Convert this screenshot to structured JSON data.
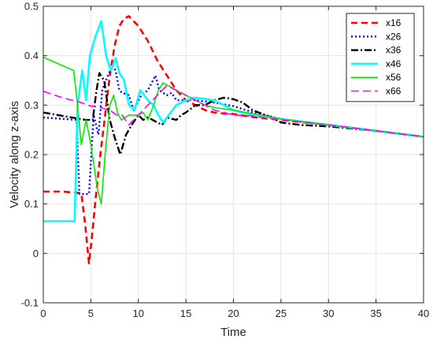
{
  "chart_data": {
    "type": "line",
    "xlabel": "Time",
    "ylabel": "Velocity along z-axis",
    "xlim": [
      0,
      40
    ],
    "ylim": [
      -0.1,
      0.5
    ],
    "xticks": [
      "0",
      "5",
      "10",
      "15",
      "20",
      "25",
      "30",
      "35",
      "40"
    ],
    "yticks": [
      "-0.1",
      "0",
      "0.1",
      "0.2",
      "0.3",
      "0.4",
      "0.5"
    ],
    "grid": true,
    "legend_position": "top-right",
    "series": [
      {
        "name": "x16",
        "color": "#ff0000",
        "dash": "8,5",
        "width": 2.6,
        "points": [
          [
            0,
            0.125
          ],
          [
            2,
            0.125
          ],
          [
            4,
            0.122
          ],
          [
            4.4,
            0.06
          ],
          [
            4.8,
            -0.02
          ],
          [
            5.1,
            0.03
          ],
          [
            5.5,
            0.11
          ],
          [
            6,
            0.2
          ],
          [
            6.5,
            0.28
          ],
          [
            7,
            0.36
          ],
          [
            7.5,
            0.42
          ],
          [
            8,
            0.46
          ],
          [
            8.5,
            0.475
          ],
          [
            9,
            0.48
          ],
          [
            10,
            0.46
          ],
          [
            11,
            0.43
          ],
          [
            12,
            0.39
          ],
          [
            13,
            0.36
          ],
          [
            14,
            0.33
          ],
          [
            15,
            0.31
          ],
          [
            16,
            0.3
          ],
          [
            17,
            0.29
          ],
          [
            18,
            0.285
          ],
          [
            19,
            0.283
          ],
          [
            20,
            0.282
          ],
          [
            22,
            0.276
          ],
          [
            25,
            0.27
          ],
          [
            30,
            0.26
          ],
          [
            35,
            0.248
          ],
          [
            40,
            0.236
          ]
        ]
      },
      {
        "name": "x26",
        "color": "#0000ff",
        "dash": "2,3",
        "width": 2.4,
        "points": [
          [
            0,
            0.275
          ],
          [
            3.5,
            0.27
          ],
          [
            3.8,
            0.12
          ],
          [
            4.8,
            0.12
          ],
          [
            5.3,
            0.28
          ],
          [
            5.8,
            0.24
          ],
          [
            6.2,
            0.33
          ],
          [
            6.8,
            0.36
          ],
          [
            7.3,
            0.38
          ],
          [
            7.6,
            0.37
          ],
          [
            8,
            0.33
          ],
          [
            8.3,
            0.325
          ],
          [
            9,
            0.32
          ],
          [
            9.5,
            0.29
          ],
          [
            10.3,
            0.32
          ],
          [
            11,
            0.33
          ],
          [
            11.8,
            0.36
          ],
          [
            12.2,
            0.33
          ],
          [
            13,
            0.32
          ],
          [
            13.5,
            0.325
          ],
          [
            14,
            0.31
          ],
          [
            15,
            0.31
          ],
          [
            16,
            0.31
          ],
          [
            18,
            0.305
          ],
          [
            20,
            0.298
          ],
          [
            22,
            0.286
          ],
          [
            25,
            0.272
          ],
          [
            30,
            0.26
          ],
          [
            35,
            0.248
          ],
          [
            40,
            0.236
          ]
        ]
      },
      {
        "name": "x36",
        "color": "#000000",
        "dash": "9,3,2,3",
        "width": 2.4,
        "points": [
          [
            0,
            0.285
          ],
          [
            3,
            0.275
          ],
          [
            4.5,
            0.27
          ],
          [
            5.2,
            0.27
          ],
          [
            5.6,
            0.33
          ],
          [
            5.9,
            0.365
          ],
          [
            6.4,
            0.35
          ],
          [
            7,
            0.27
          ],
          [
            7.5,
            0.235
          ],
          [
            8.1,
            0.2
          ],
          [
            8.7,
            0.24
          ],
          [
            9.3,
            0.26
          ],
          [
            10,
            0.28
          ],
          [
            10.5,
            0.27
          ],
          [
            11,
            0.275
          ],
          [
            11.5,
            0.27
          ],
          [
            12,
            0.265
          ],
          [
            12.5,
            0.26
          ],
          [
            13,
            0.275
          ],
          [
            14,
            0.27
          ],
          [
            14.5,
            0.28
          ],
          [
            15,
            0.285
          ],
          [
            16,
            0.3
          ],
          [
            17,
            0.3
          ],
          [
            18,
            0.31
          ],
          [
            19,
            0.315
          ],
          [
            20,
            0.312
          ],
          [
            21,
            0.305
          ],
          [
            22,
            0.29
          ],
          [
            24,
            0.275
          ],
          [
            25,
            0.265
          ],
          [
            27,
            0.26
          ],
          [
            30,
            0.257
          ],
          [
            35,
            0.248
          ],
          [
            40,
            0.236
          ]
        ]
      },
      {
        "name": "x46",
        "color": "#00ffff",
        "dash": "",
        "width": 2.6,
        "points": [
          [
            0,
            0.065
          ],
          [
            3.3,
            0.065
          ],
          [
            3.6,
            0.3
          ],
          [
            4.1,
            0.37
          ],
          [
            4.5,
            0.31
          ],
          [
            4.9,
            0.4
          ],
          [
            5.5,
            0.44
          ],
          [
            6.1,
            0.47
          ],
          [
            6.6,
            0.4
          ],
          [
            7.1,
            0.37
          ],
          [
            7.6,
            0.395
          ],
          [
            8,
            0.365
          ],
          [
            8.5,
            0.35
          ],
          [
            9,
            0.3
          ],
          [
            9.6,
            0.29
          ],
          [
            10.2,
            0.33
          ],
          [
            11,
            0.31
          ],
          [
            11.6,
            0.3
          ],
          [
            12.1,
            0.28
          ],
          [
            12.6,
            0.265
          ],
          [
            13,
            0.275
          ],
          [
            14,
            0.3
          ],
          [
            15,
            0.31
          ],
          [
            16,
            0.315
          ],
          [
            18,
            0.31
          ],
          [
            20,
            0.29
          ],
          [
            22,
            0.28
          ],
          [
            25,
            0.272
          ],
          [
            30,
            0.26
          ],
          [
            35,
            0.248
          ],
          [
            40,
            0.236
          ]
        ]
      },
      {
        "name": "x56",
        "color": "#00ee00",
        "dash": "",
        "width": 1.6,
        "points": [
          [
            0,
            0.397
          ],
          [
            3.2,
            0.37
          ],
          [
            3.6,
            0.3
          ],
          [
            4,
            0.22
          ],
          [
            4.5,
            0.27
          ],
          [
            5,
            0.22
          ],
          [
            5.7,
            0.13
          ],
          [
            6.1,
            0.1
          ],
          [
            6.5,
            0.2
          ],
          [
            7,
            0.3
          ],
          [
            7.4,
            0.32
          ],
          [
            7.8,
            0.285
          ],
          [
            8.2,
            0.27
          ],
          [
            9,
            0.28
          ],
          [
            10,
            0.28
          ],
          [
            10.5,
            0.285
          ],
          [
            11,
            0.27
          ],
          [
            11.6,
            0.3
          ],
          [
            12.1,
            0.33
          ],
          [
            12.6,
            0.345
          ],
          [
            13.1,
            0.34
          ],
          [
            14,
            0.33
          ],
          [
            15,
            0.32
          ],
          [
            16,
            0.31
          ],
          [
            17,
            0.3
          ],
          [
            18,
            0.295
          ],
          [
            20,
            0.29
          ],
          [
            22,
            0.283
          ],
          [
            25,
            0.272
          ],
          [
            30,
            0.26
          ],
          [
            35,
            0.248
          ],
          [
            40,
            0.236
          ]
        ]
      },
      {
        "name": "x66",
        "color": "#ff00ff",
        "dash": "10,5",
        "width": 1.6,
        "points": [
          [
            0,
            0.328
          ],
          [
            2,
            0.315
          ],
          [
            4,
            0.305
          ],
          [
            5,
            0.298
          ],
          [
            6,
            0.295
          ],
          [
            7,
            0.29
          ],
          [
            7.7,
            0.28
          ],
          [
            8.3,
            0.28
          ],
          [
            9,
            0.26
          ],
          [
            10,
            0.28
          ],
          [
            11,
            0.3
          ],
          [
            12,
            0.32
          ],
          [
            13,
            0.34
          ],
          [
            14,
            0.33
          ],
          [
            15,
            0.32
          ],
          [
            16,
            0.31
          ],
          [
            17,
            0.3
          ],
          [
            18,
            0.29
          ],
          [
            19,
            0.285
          ],
          [
            20,
            0.28
          ],
          [
            22,
            0.278
          ],
          [
            25,
            0.27
          ],
          [
            30,
            0.26
          ],
          [
            35,
            0.248
          ],
          [
            40,
            0.236
          ]
        ]
      }
    ]
  }
}
